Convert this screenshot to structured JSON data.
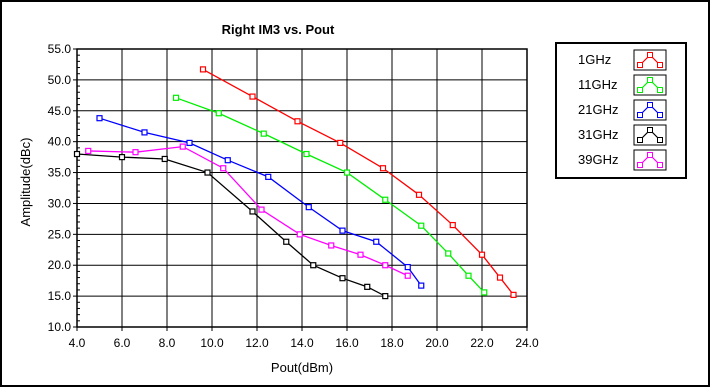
{
  "chart_data": {
    "type": "line",
    "title": "Right IM3 vs. Pout",
    "xlabel": "Pout(dBm)",
    "ylabel": "Amplitude(dBc)",
    "xlim": [
      4.0,
      24.0
    ],
    "ylim": [
      10.0,
      55.0
    ],
    "xticks": [
      "4.0",
      "6.0",
      "8.0",
      "10.0",
      "12.0",
      "14.0",
      "16.0",
      "18.0",
      "20.0",
      "22.0",
      "24.0"
    ],
    "yticks": [
      "10.0",
      "15.0",
      "20.0",
      "25.0",
      "30.0",
      "35.0",
      "40.0",
      "45.0",
      "50.0",
      "55.0"
    ],
    "grid": true,
    "legend_position": "right",
    "series": [
      {
        "name": "1GHz",
        "color": "#ff0000",
        "x": [
          9.6,
          11.8,
          13.8,
          15.7,
          17.6,
          19.2,
          20.7,
          22.0,
          22.8,
          23.4
        ],
        "y": [
          51.7,
          47.3,
          43.3,
          39.8,
          35.7,
          31.4,
          26.5,
          21.7,
          18.0,
          15.2
        ]
      },
      {
        "name": "11GHz",
        "color": "#00ee00",
        "x": [
          8.4,
          10.3,
          12.3,
          14.2,
          16.0,
          17.7,
          19.3,
          20.5,
          21.4,
          22.1
        ],
        "y": [
          47.1,
          44.6,
          41.3,
          38.0,
          35.0,
          30.6,
          26.4,
          21.9,
          18.3,
          15.6
        ]
      },
      {
        "name": "21GHz",
        "color": "#0000ff",
        "x": [
          5.0,
          7.0,
          9.0,
          10.7,
          12.5,
          14.3,
          15.8,
          17.3,
          18.7,
          19.3
        ],
        "y": [
          43.8,
          41.5,
          39.8,
          37.0,
          34.3,
          29.4,
          25.6,
          23.8,
          19.7,
          16.7
        ]
      },
      {
        "name": "31GHz",
        "color": "#000000",
        "x": [
          4.0,
          6.0,
          7.9,
          9.8,
          11.8,
          13.3,
          14.5,
          15.8,
          16.9,
          17.7
        ],
        "y": [
          38.0,
          37.5,
          37.2,
          35.0,
          28.7,
          23.8,
          20.0,
          17.9,
          16.5,
          15.0
        ]
      },
      {
        "name": "39GHz",
        "color": "#ff00ff",
        "x": [
          4.5,
          6.6,
          8.7,
          10.5,
          12.2,
          13.9,
          15.3,
          16.6,
          17.7,
          18.7
        ],
        "y": [
          38.5,
          38.3,
          39.2,
          35.7,
          29.0,
          25.0,
          23.2,
          21.7,
          20.0,
          18.3
        ]
      }
    ]
  }
}
